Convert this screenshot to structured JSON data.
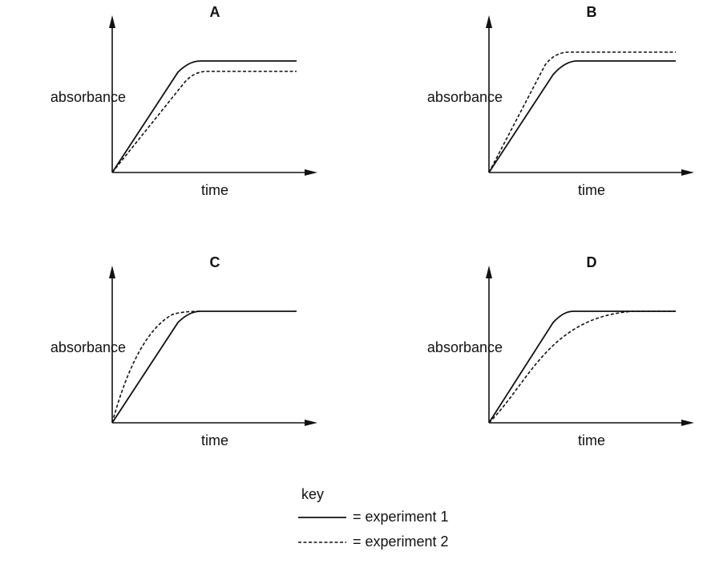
{
  "panels": [
    {
      "label": "A",
      "y_label": "absorbance",
      "x_label": "time"
    },
    {
      "label": "B",
      "y_label": "absorbance",
      "x_label": "time"
    },
    {
      "label": "C",
      "y_label": "absorbance",
      "x_label": "time"
    },
    {
      "label": "D",
      "y_label": "absorbance",
      "x_label": "time"
    }
  ],
  "key": {
    "title": "key",
    "entries": [
      "= experiment 1",
      "= experiment 2"
    ]
  }
}
